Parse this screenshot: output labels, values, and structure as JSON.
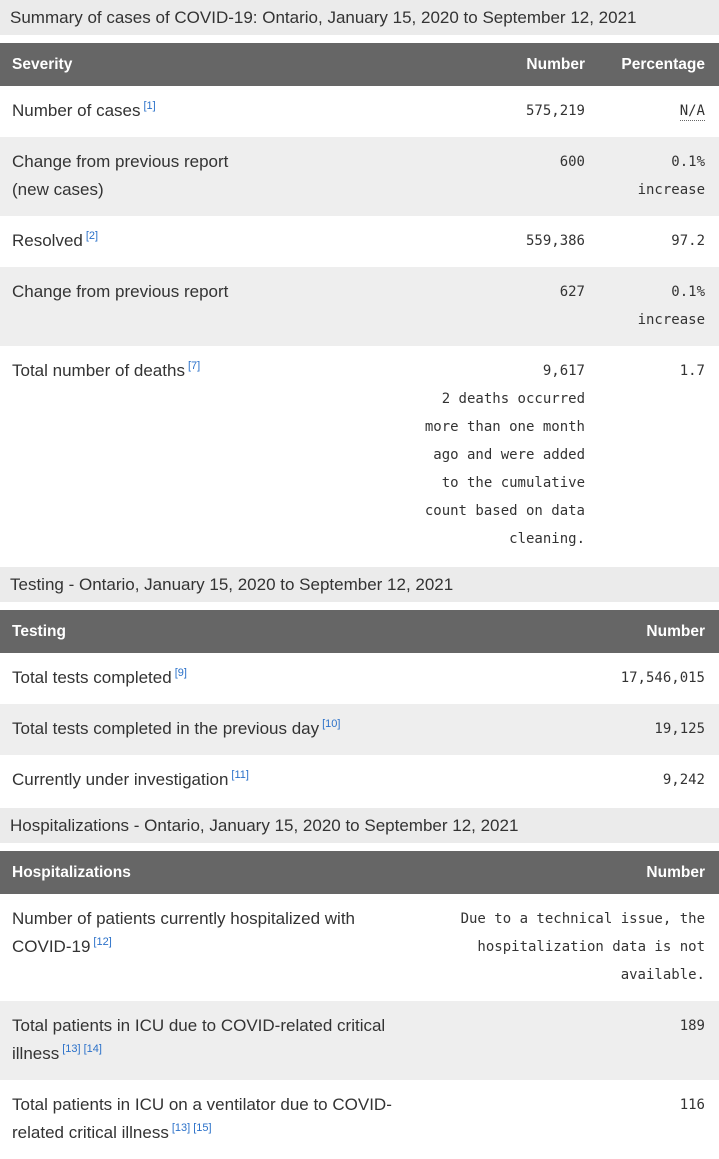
{
  "colors": {
    "header_bg": "#666666",
    "header_text": "#ffffff",
    "caption_bg": "#ebebeb",
    "row_stripe": "#eeeeee",
    "body_text": "#333333",
    "footnote_link": "#2b71c9"
  },
  "summary": {
    "caption": "Summary of cases of COVID-19: Ontario, January 15, 2020 to September 12, 2021",
    "col_severity": "Severity",
    "col_number": "Number",
    "col_percentage": "Percentage",
    "rows": [
      {
        "label": "Number of cases",
        "footnote": "[1]",
        "number": "575,219",
        "pct": "N/A"
      },
      {
        "label": "Change from previous report",
        "label2": "(new cases)",
        "number": "600",
        "pct": "0.1%",
        "pct2": "increase"
      },
      {
        "label": "Resolved",
        "footnote": "[2]",
        "number": "559,386",
        "pct": "97.2"
      },
      {
        "label": "Change from previous report",
        "number": "627",
        "pct": "0.1%",
        "pct2": "increase"
      },
      {
        "label": "Total number of deaths",
        "footnote": "[7]",
        "number": "9,617",
        "note": "2 deaths occurred more than one month ago and were added to the cumulative count based on data cleaning.",
        "pct": "1.7"
      }
    ]
  },
  "testing": {
    "caption": "Testing - Ontario, January 15, 2020 to September 12, 2021",
    "col_testing": "Testing",
    "col_number": "Number",
    "rows": [
      {
        "label": "Total tests completed",
        "footnote": "[9]",
        "number": "17,546,015"
      },
      {
        "label": "Total tests completed in the previous day",
        "footnote": "[10]",
        "number": "19,125"
      },
      {
        "label": "Currently under investigation",
        "footnote": "[11]",
        "number": "9,242"
      }
    ]
  },
  "hospitalizations": {
    "caption": "Hospitalizations - Ontario, January 15, 2020 to September 12, 2021",
    "col_hospitalizations": "Hospitalizations",
    "col_number": "Number",
    "rows": [
      {
        "label": "Number of patients currently hospitalized with COVID-19",
        "footnote": "[12]",
        "note": "Due to a technical issue, the hospitalization data is not available."
      },
      {
        "label": "Total patients in ICU due to COVID-related critical illness",
        "footnote": "[13]",
        "footnote2": "[14]",
        "number": "189"
      },
      {
        "label": "Total patients in ICU on a ventilator due to COVID-related critical illness",
        "footnote": "[13]",
        "footnote2": "[15]",
        "number": "116"
      }
    ]
  }
}
